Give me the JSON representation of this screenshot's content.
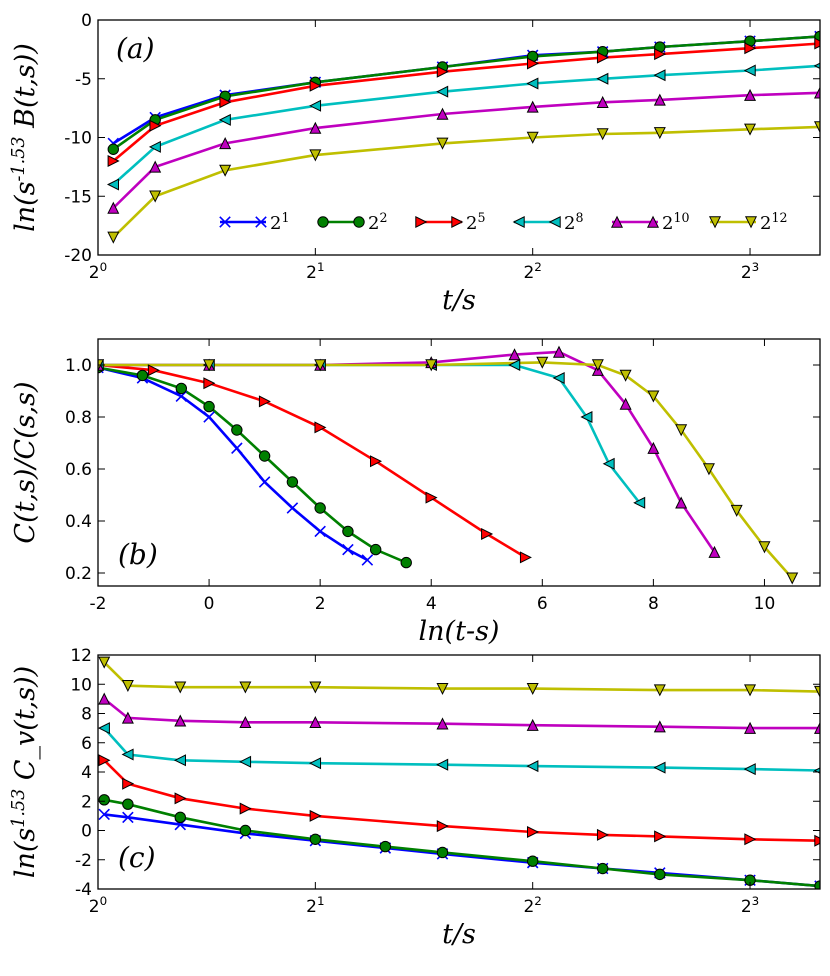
{
  "chart_data": [
    {
      "id": "a",
      "type": "line",
      "panel_label": "(a)",
      "xlabel": "t/s",
      "ylabel": "ln(s^-1.53 B(t,s))",
      "xscale": "log2",
      "xlim": [
        1,
        10
      ],
      "ylim": [
        -20,
        0
      ],
      "xticks": [
        1,
        2,
        4,
        8
      ],
      "xticklabels": [
        "2^0",
        "2^1",
        "2^2",
        "2^3"
      ],
      "yticks": [
        -20,
        -15,
        -10,
        -5,
        0
      ],
      "legend": {
        "position": "bottom-inside",
        "entries": [
          "2^1",
          "2^2",
          "2^5",
          "2^8",
          "2^10",
          "2^12"
        ]
      },
      "series": [
        {
          "name": "2^1",
          "color": "#0000ff",
          "marker": "x",
          "x": [
            1.05,
            1.2,
            1.5,
            2,
            3,
            4,
            5,
            6,
            8,
            10
          ],
          "y": [
            -10.5,
            -8.3,
            -6.4,
            -5.3,
            -4.0,
            -3.0,
            -2.7,
            -2.3,
            -1.8,
            -1.4
          ]
        },
        {
          "name": "2^2",
          "color": "#008000",
          "marker": "o",
          "x": [
            1.05,
            1.2,
            1.5,
            2,
            3,
            4,
            5,
            6,
            8,
            10
          ],
          "y": [
            -11.0,
            -8.5,
            -6.5,
            -5.3,
            -4.0,
            -3.1,
            -2.7,
            -2.3,
            -1.8,
            -1.4
          ]
        },
        {
          "name": "2^5",
          "color": "#ff0000",
          "marker": ">",
          "x": [
            1.05,
            1.2,
            1.5,
            2,
            3,
            4,
            5,
            6,
            8,
            10
          ],
          "y": [
            -12.0,
            -9.0,
            -7.0,
            -5.6,
            -4.4,
            -3.7,
            -3.2,
            -2.9,
            -2.4,
            -2.0
          ]
        },
        {
          "name": "2^8",
          "color": "#00bfbf",
          "marker": "<",
          "x": [
            1.05,
            1.2,
            1.5,
            2,
            3,
            4,
            5,
            6,
            8,
            10
          ],
          "y": [
            -14.0,
            -10.8,
            -8.5,
            -7.3,
            -6.1,
            -5.4,
            -5.0,
            -4.7,
            -4.3,
            -3.9
          ]
        },
        {
          "name": "2^10",
          "color": "#bf00bf",
          "marker": "^",
          "x": [
            1.05,
            1.2,
            1.5,
            2,
            3,
            4,
            5,
            6,
            8,
            10
          ],
          "y": [
            -16.0,
            -12.5,
            -10.5,
            -9.2,
            -8.0,
            -7.4,
            -7.0,
            -6.8,
            -6.4,
            -6.2
          ]
        },
        {
          "name": "2^12",
          "color": "#bfbf00",
          "marker": "v",
          "x": [
            1.05,
            1.2,
            1.5,
            2,
            3,
            4,
            5,
            6,
            8,
            10
          ],
          "y": [
            -18.5,
            -15.0,
            -12.8,
            -11.5,
            -10.5,
            -10.0,
            -9.7,
            -9.6,
            -9.3,
            -9.1
          ]
        }
      ]
    },
    {
      "id": "b",
      "type": "line",
      "panel_label": "(b)",
      "xlabel": "ln(t-s)",
      "ylabel": "C(t,s)/C(s,s)",
      "xscale": "linear",
      "xlim": [
        -2,
        11
      ],
      "ylim": [
        0.15,
        1.1
      ],
      "xticks": [
        -2,
        0,
        2,
        4,
        6,
        8,
        10
      ],
      "xticklabels": [
        "-2",
        "0",
        "2",
        "4",
        "6",
        "8",
        "10"
      ],
      "yticks": [
        0.2,
        0.4,
        0.6,
        0.8,
        1.0
      ],
      "yticklabels": [
        "0.2",
        "0.4",
        "0.6",
        "0.8",
        "1.0"
      ],
      "series": [
        {
          "name": "2^1",
          "color": "#0000ff",
          "marker": "x",
          "x": [
            -2,
            -1.2,
            -0.5,
            0,
            0.5,
            1,
            1.5,
            2,
            2.5,
            2.85
          ],
          "y": [
            0.99,
            0.95,
            0.88,
            0.8,
            0.68,
            0.55,
            0.45,
            0.36,
            0.29,
            0.25
          ]
        },
        {
          "name": "2^2",
          "color": "#008000",
          "marker": "o",
          "x": [
            -2,
            -1.2,
            -0.5,
            0,
            0.5,
            1,
            1.5,
            2,
            2.5,
            3,
            3.55
          ],
          "y": [
            0.99,
            0.96,
            0.91,
            0.84,
            0.75,
            0.65,
            0.55,
            0.45,
            0.36,
            0.29,
            0.24
          ]
        },
        {
          "name": "2^5",
          "color": "#ff0000",
          "marker": ">",
          "x": [
            -2,
            -1,
            0,
            1,
            2,
            3,
            4,
            5,
            5.7
          ],
          "y": [
            1.0,
            0.98,
            0.93,
            0.86,
            0.76,
            0.63,
            0.49,
            0.35,
            0.26
          ]
        },
        {
          "name": "2^8",
          "color": "#00bfbf",
          "marker": "<",
          "x": [
            -2,
            0,
            2,
            4,
            5.5,
            6.3,
            6.8,
            7.2,
            7.75
          ],
          "y": [
            1.0,
            1.0,
            1.0,
            1.0,
            1.0,
            0.95,
            0.8,
            0.62,
            0.47
          ]
        },
        {
          "name": "2^10",
          "color": "#bf00bf",
          "marker": "^",
          "x": [
            -2,
            0,
            2,
            4,
            5.5,
            6.3,
            7.0,
            7.5,
            8.0,
            8.5,
            9.1
          ],
          "y": [
            1.0,
            1.0,
            1.0,
            1.01,
            1.04,
            1.05,
            0.98,
            0.85,
            0.68,
            0.47,
            0.28
          ]
        },
        {
          "name": "2^12",
          "color": "#bfbf00",
          "marker": "v",
          "x": [
            -2,
            0,
            2,
            4,
            6,
            7,
            7.5,
            8,
            8.5,
            9,
            9.5,
            10,
            10.5
          ],
          "y": [
            1.0,
            1.0,
            1.0,
            1.0,
            1.01,
            1.0,
            0.96,
            0.88,
            0.75,
            0.6,
            0.44,
            0.3,
            0.18
          ]
        }
      ]
    },
    {
      "id": "c",
      "type": "line",
      "panel_label": "(c)",
      "xlabel": "t/s",
      "ylabel": "ln(s^1.53 C_v(t,s))",
      "xscale": "log2",
      "xlim": [
        1,
        10
      ],
      "ylim": [
        -4,
        12
      ],
      "xticks": [
        1,
        2,
        4,
        8
      ],
      "xticklabels": [
        "2^0",
        "2^1",
        "2^2",
        "2^3"
      ],
      "yticks": [
        -4,
        -2,
        0,
        2,
        4,
        6,
        8,
        10,
        12
      ],
      "series": [
        {
          "name": "2^1",
          "color": "#0000ff",
          "marker": "x",
          "x": [
            1.02,
            1.1,
            1.3,
            1.6,
            2,
            2.5,
            3,
            4,
            5,
            6,
            8,
            10
          ],
          "y": [
            1.1,
            0.9,
            0.4,
            -0.2,
            -0.7,
            -1.2,
            -1.6,
            -2.2,
            -2.6,
            -2.9,
            -3.4,
            -3.8
          ]
        },
        {
          "name": "2^2",
          "color": "#008000",
          "marker": "o",
          "x": [
            1.02,
            1.1,
            1.3,
            1.6,
            2,
            2.5,
            3,
            4,
            5,
            6,
            8,
            10
          ],
          "y": [
            2.1,
            1.8,
            0.9,
            0.0,
            -0.6,
            -1.1,
            -1.5,
            -2.1,
            -2.6,
            -3.0,
            -3.4,
            -3.8
          ]
        },
        {
          "name": "2^5",
          "color": "#ff0000",
          "marker": ">",
          "x": [
            1.02,
            1.1,
            1.3,
            1.6,
            2,
            3,
            4,
            5,
            6,
            8,
            10
          ],
          "y": [
            4.8,
            3.2,
            2.2,
            1.5,
            1.0,
            0.3,
            -0.1,
            -0.3,
            -0.4,
            -0.6,
            -0.7
          ]
        },
        {
          "name": "2^8",
          "color": "#00bfbf",
          "marker": "<",
          "x": [
            1.02,
            1.1,
            1.3,
            1.6,
            2,
            3,
            4,
            6,
            8,
            10
          ],
          "y": [
            7.0,
            5.2,
            4.8,
            4.7,
            4.6,
            4.5,
            4.4,
            4.3,
            4.2,
            4.1
          ]
        },
        {
          "name": "2^10",
          "color": "#bf00bf",
          "marker": "^",
          "x": [
            1.02,
            1.1,
            1.3,
            1.6,
            2,
            3,
            4,
            6,
            8,
            10
          ],
          "y": [
            9.0,
            7.7,
            7.5,
            7.4,
            7.4,
            7.3,
            7.2,
            7.1,
            7.0,
            7.0
          ]
        },
        {
          "name": "2^12",
          "color": "#bfbf00",
          "marker": "v",
          "x": [
            1.02,
            1.1,
            1.3,
            1.6,
            2,
            3,
            4,
            6,
            8,
            10
          ],
          "y": [
            11.5,
            9.9,
            9.8,
            9.8,
            9.8,
            9.7,
            9.7,
            9.6,
            9.6,
            9.5
          ]
        }
      ]
    }
  ]
}
